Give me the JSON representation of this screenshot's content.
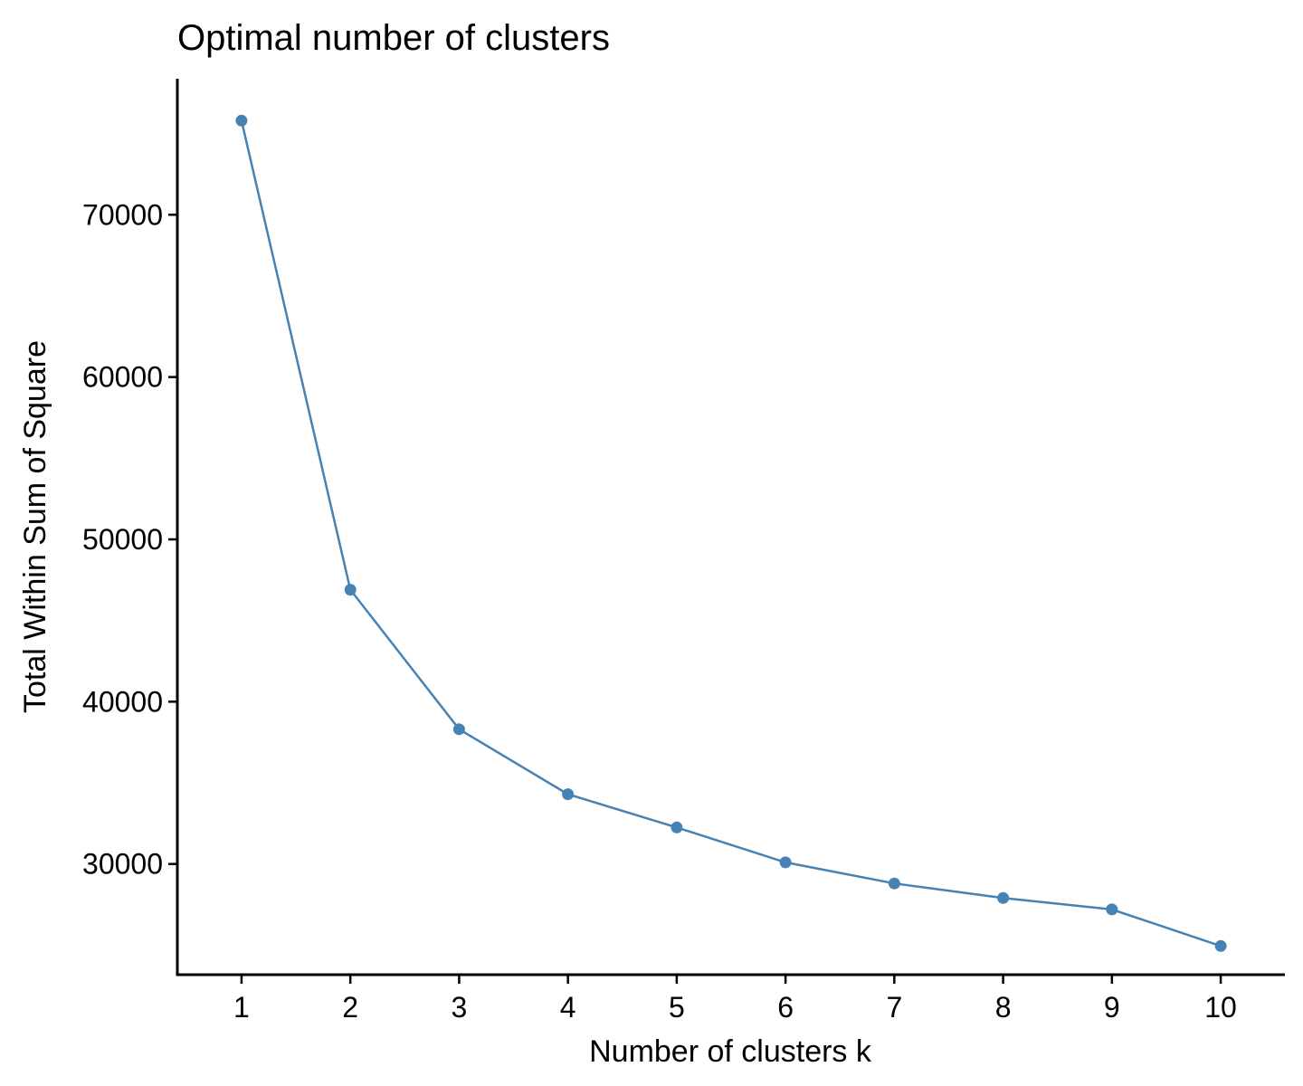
{
  "chart_data": {
    "type": "line",
    "title": "Optimal number of clusters",
    "xlabel": "Number of clusters k",
    "ylabel": "Total Within Sum of Square",
    "x": [
      1,
      2,
      3,
      4,
      5,
      6,
      7,
      8,
      9,
      10
    ],
    "values": [
      75800,
      46900,
      38300,
      34300,
      32250,
      30100,
      28800,
      27900,
      27200,
      24950
    ],
    "xticks": [
      "1",
      "2",
      "3",
      "4",
      "5",
      "6",
      "7",
      "8",
      "9",
      "10"
    ],
    "yticks": [
      30000,
      40000,
      50000,
      60000,
      70000
    ],
    "ytick_labels": [
      "30000",
      "40000",
      "50000",
      "60000",
      "70000"
    ],
    "xlim": [
      0.41,
      10.59
    ],
    "ylim": [
      23180,
      78380
    ],
    "grid": false,
    "series_color": "#4682B4",
    "show_markers": true
  }
}
